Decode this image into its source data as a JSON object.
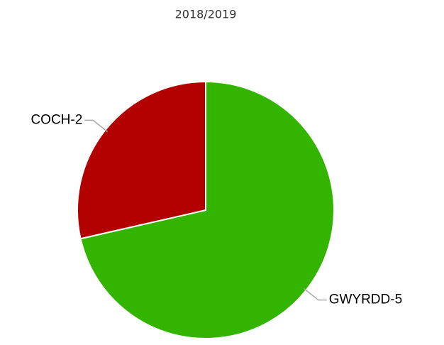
{
  "chart_data": {
    "type": "pie",
    "title": "2018/2019",
    "categories": [
      "GWYRDD-5",
      "COCH-2"
    ],
    "values": [
      5,
      2
    ],
    "colors": [
      "#33b500",
      "#b30000"
    ]
  }
}
